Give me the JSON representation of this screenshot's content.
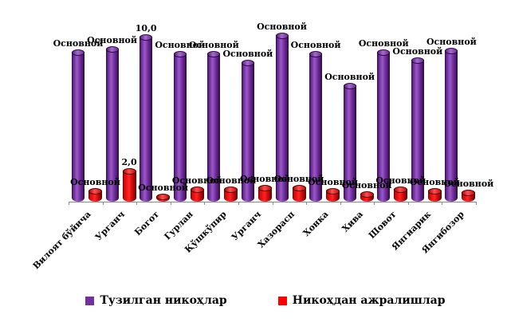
{
  "chart_data": {
    "type": "bar",
    "subtype": "3d-cylinder-clustered",
    "title": "",
    "xlabel": "",
    "ylabel": "",
    "ylim": [
      0,
      10.5
    ],
    "grid": false,
    "legend_position": "bottom",
    "categories": [
      "Вилоят бўйича",
      "Урганч",
      "Богот",
      "Гурлан",
      "Қўшкўпир",
      "Урганч",
      "Хазорасп",
      "Хонка",
      "Хива",
      "Шовот",
      "Янгиарик",
      "Янгибозор"
    ],
    "series": [
      {
        "name": "Тузилган никоҳлар",
        "color": "#7030A0",
        "values": [
          9.1,
          9.3,
          10.0,
          9.0,
          9.0,
          8.5,
          10.1,
          9.0,
          7.1,
          9.1,
          8.6,
          9.2
        ],
        "data_labels": [
          "Основной",
          "Основной",
          "10,0",
          "Основной",
          "Основной",
          "Основной",
          "Основной",
          "Основной",
          "Основной",
          "Основной",
          "Основной",
          "Основной"
        ]
      },
      {
        "name": "Никоҳдан ажралишлар",
        "color": "#FF0000",
        "values": [
          0.8,
          2.0,
          0.5,
          0.9,
          0.9,
          1.0,
          1.0,
          0.8,
          0.6,
          0.9,
          0.8,
          0.7
        ],
        "data_labels": [
          "Основной",
          "2,0",
          "Основной",
          "Основной",
          "Основной",
          "Основной",
          "Основной",
          "Основной",
          "Основной",
          "Основной",
          "Основной",
          "Основной"
        ]
      }
    ]
  }
}
